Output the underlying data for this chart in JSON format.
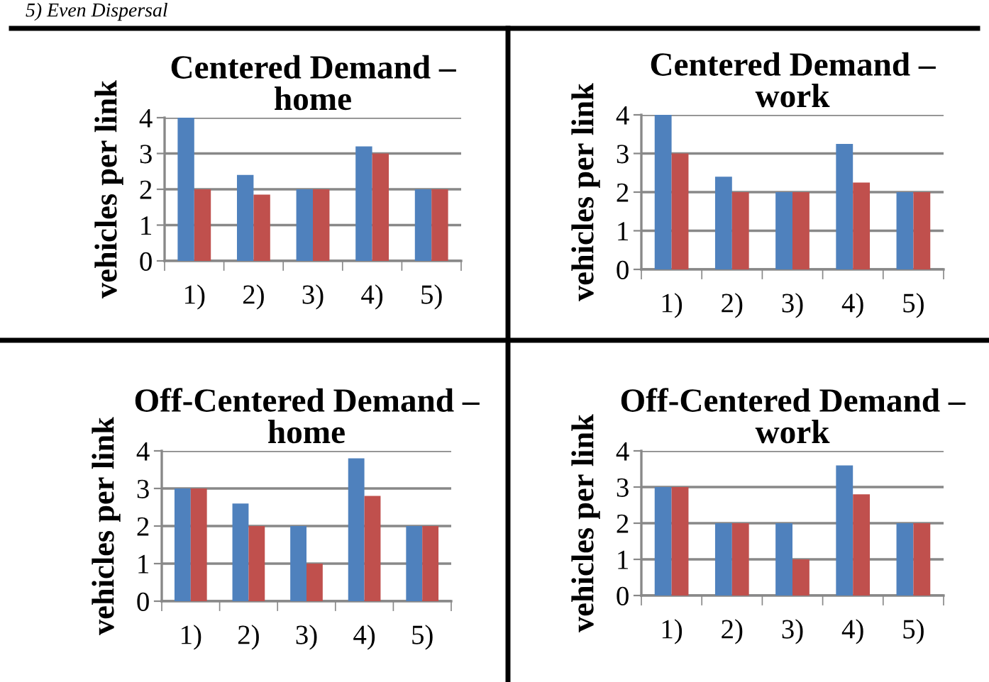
{
  "chart_data": [
    {
      "type": "bar",
      "title": "Centered Demand –\nhome",
      "ylabel": "vehicles per link",
      "annotations": [
        "5) Even Dispersal"
      ],
      "categories": [
        "1)",
        "2)",
        "3)",
        "4)",
        "5)"
      ],
      "series": [
        {
          "color": "#4f81bd",
          "values": [
            4,
            2.4,
            2,
            3.2,
            2
          ]
        },
        {
          "color": "#c0504d",
          "values": [
            2,
            1.85,
            2,
            3,
            2
          ]
        }
      ],
      "ylim": [
        0,
        4
      ],
      "yticks": [
        0,
        1,
        2,
        3,
        4
      ],
      "grid": "y",
      "legend": false
    },
    {
      "type": "bar",
      "title": "Centered Demand –\nwork",
      "ylabel": "vehicles per link",
      "categories": [
        "1)",
        "2)",
        "3)",
        "4)",
        "5)"
      ],
      "series": [
        {
          "color": "#4f81bd",
          "values": [
            4,
            2.4,
            2,
            3.25,
            2
          ]
        },
        {
          "color": "#c0504d",
          "values": [
            3,
            2,
            2,
            2.25,
            2
          ]
        }
      ],
      "ylim": [
        0,
        4
      ],
      "yticks": [
        0,
        1,
        2,
        3,
        4
      ],
      "grid": "y",
      "legend": false
    },
    {
      "type": "bar",
      "title": "Off-Centered Demand –\nhome",
      "ylabel": "vehicles per link",
      "categories": [
        "1)",
        "2)",
        "3)",
        "4)",
        "5)"
      ],
      "series": [
        {
          "color": "#4f81bd",
          "values": [
            3,
            2.6,
            2,
            3.8,
            2
          ]
        },
        {
          "color": "#c0504d",
          "values": [
            3,
            2,
            1,
            2.8,
            2
          ]
        }
      ],
      "ylim": [
        0,
        4
      ],
      "yticks": [
        0,
        1,
        2,
        3,
        4
      ],
      "grid": "y",
      "legend": false
    },
    {
      "type": "bar",
      "title": "Off-Centered Demand –\nwork",
      "ylabel": "vehicles per link",
      "categories": [
        "1)",
        "2)",
        "3)",
        "4)",
        "5)"
      ],
      "series": [
        {
          "color": "#4f81bd",
          "values": [
            3,
            2,
            2,
            3.6,
            2
          ]
        },
        {
          "color": "#c0504d",
          "values": [
            3,
            2,
            1,
            2.8,
            2
          ]
        }
      ],
      "ylim": [
        0,
        4
      ],
      "yticks": [
        0,
        1,
        2,
        3,
        4
      ],
      "grid": "y",
      "legend": false
    }
  ]
}
